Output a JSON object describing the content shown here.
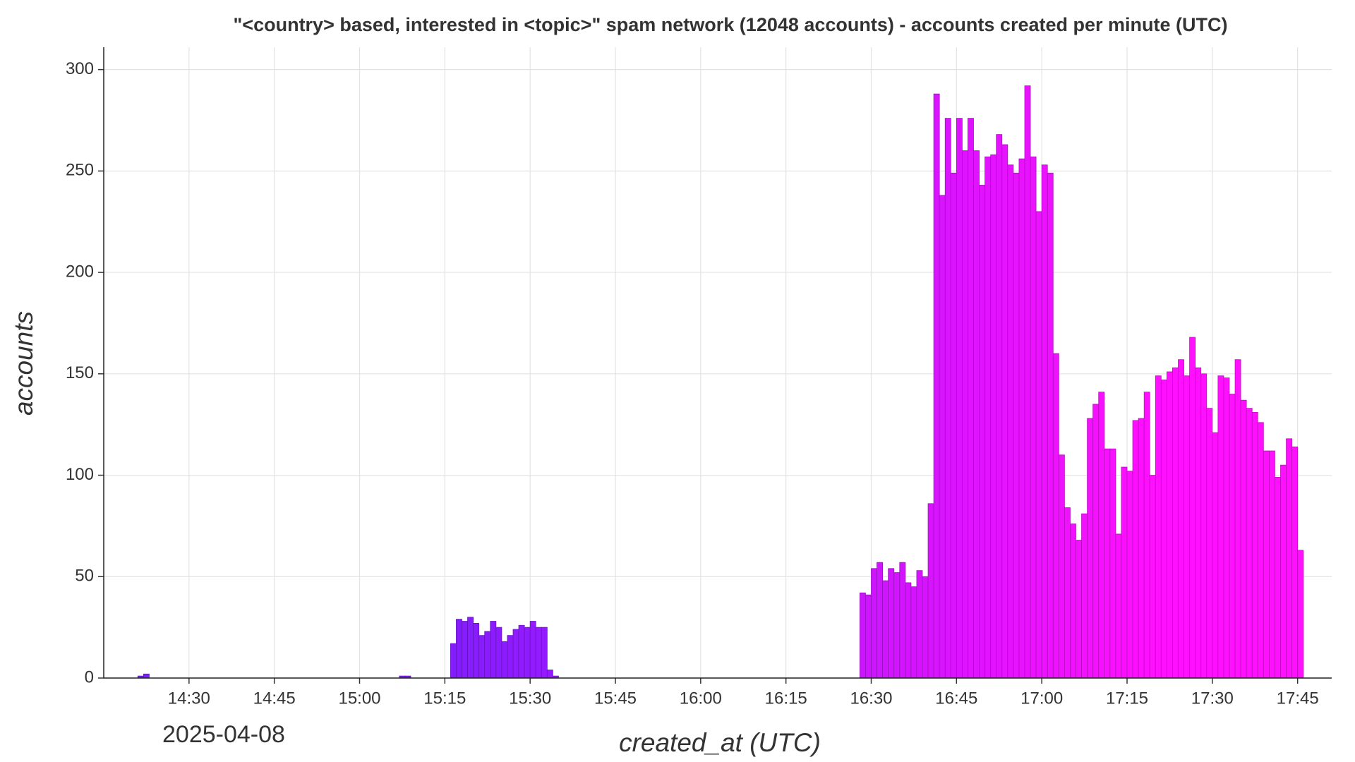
{
  "chart_data": {
    "type": "bar",
    "title": "\"<country> based, interested in <topic>\" spam network (12048 accounts) - accounts created per minute (UTC)",
    "x_label": "created_at (UTC)",
    "y_label": "accounts",
    "x_date_label": "2025-04-08",
    "color_scale": [
      "#7d1dff",
      "#ff10ff"
    ],
    "grid": true,
    "x": [
      "2025-04-08 14:21",
      "2025-04-08 14:22",
      "2025-04-08 15:07",
      "2025-04-08 15:08",
      "2025-04-08 15:16",
      "2025-04-08 15:17",
      "2025-04-08 15:18",
      "2025-04-08 15:19",
      "2025-04-08 15:20",
      "2025-04-08 15:21",
      "2025-04-08 15:22",
      "2025-04-08 15:23",
      "2025-04-08 15:24",
      "2025-04-08 15:25",
      "2025-04-08 15:26",
      "2025-04-08 15:27",
      "2025-04-08 15:28",
      "2025-04-08 15:29",
      "2025-04-08 15:30",
      "2025-04-08 15:31",
      "2025-04-08 15:32",
      "2025-04-08 15:33",
      "2025-04-08 15:34",
      "2025-04-08 16:28",
      "2025-04-08 16:29",
      "2025-04-08 16:30",
      "2025-04-08 16:31",
      "2025-04-08 16:32",
      "2025-04-08 16:33",
      "2025-04-08 16:34",
      "2025-04-08 16:35",
      "2025-04-08 16:36",
      "2025-04-08 16:37",
      "2025-04-08 16:38",
      "2025-04-08 16:39",
      "2025-04-08 16:40",
      "2025-04-08 16:41",
      "2025-04-08 16:42",
      "2025-04-08 16:43",
      "2025-04-08 16:44",
      "2025-04-08 16:45",
      "2025-04-08 16:46",
      "2025-04-08 16:47",
      "2025-04-08 16:48",
      "2025-04-08 16:49",
      "2025-04-08 16:50",
      "2025-04-08 16:51",
      "2025-04-08 16:52",
      "2025-04-08 16:53",
      "2025-04-08 16:54",
      "2025-04-08 16:55",
      "2025-04-08 16:56",
      "2025-04-08 16:57",
      "2025-04-08 16:58",
      "2025-04-08 16:59",
      "2025-04-08 17:00",
      "2025-04-08 17:01",
      "2025-04-08 17:02",
      "2025-04-08 17:03",
      "2025-04-08 17:04",
      "2025-04-08 17:05",
      "2025-04-08 17:06",
      "2025-04-08 17:07",
      "2025-04-08 17:08",
      "2025-04-08 17:09",
      "2025-04-08 17:10",
      "2025-04-08 17:11",
      "2025-04-08 17:12",
      "2025-04-08 17:13",
      "2025-04-08 17:14",
      "2025-04-08 17:15",
      "2025-04-08 17:16",
      "2025-04-08 17:17",
      "2025-04-08 17:18",
      "2025-04-08 17:19",
      "2025-04-08 17:20",
      "2025-04-08 17:21",
      "2025-04-08 17:22",
      "2025-04-08 17:23",
      "2025-04-08 17:24",
      "2025-04-08 17:25",
      "2025-04-08 17:26",
      "2025-04-08 17:27",
      "2025-04-08 17:28",
      "2025-04-08 17:29",
      "2025-04-08 17:30",
      "2025-04-08 17:31",
      "2025-04-08 17:32",
      "2025-04-08 17:33",
      "2025-04-08 17:34",
      "2025-04-08 17:35",
      "2025-04-08 17:36",
      "2025-04-08 17:37",
      "2025-04-08 17:38",
      "2025-04-08 17:39",
      "2025-04-08 17:40",
      "2025-04-08 17:41",
      "2025-04-08 17:42",
      "2025-04-08 17:43",
      "2025-04-08 17:44",
      "2025-04-08 17:45"
    ],
    "values": [
      1,
      2,
      1,
      1,
      17,
      29,
      28,
      30,
      27,
      21,
      23,
      28,
      25,
      18,
      21,
      24,
      26,
      25,
      28,
      25,
      25,
      4,
      1,
      42,
      41,
      54,
      57,
      48,
      54,
      52,
      57,
      47,
      45,
      53,
      50,
      86,
      288,
      238,
      276,
      249,
      276,
      260,
      276,
      260,
      243,
      257,
      258,
      268,
      263,
      253,
      249,
      256,
      292,
      257,
      230,
      253,
      249,
      160,
      110,
      84,
      76,
      68,
      81,
      128,
      135,
      141,
      113,
      113,
      71,
      104,
      102,
      127,
      128,
      141,
      100,
      149,
      147,
      151,
      153,
      157,
      149,
      168,
      153,
      150,
      133,
      121,
      149,
      148,
      140,
      157,
      137,
      133,
      131,
      126,
      112,
      112,
      99,
      105,
      118,
      114,
      63
    ],
    "xlim": [
      "2025-04-08 14:15",
      "2025-04-08 17:51"
    ],
    "xticks": [
      {
        "value": "2025-04-08 14:30",
        "label": "14:30"
      },
      {
        "value": "2025-04-08 14:45",
        "label": "14:45"
      },
      {
        "value": "2025-04-08 15:00",
        "label": "15:00"
      },
      {
        "value": "2025-04-08 15:15",
        "label": "15:15"
      },
      {
        "value": "2025-04-08 15:30",
        "label": "15:30"
      },
      {
        "value": "2025-04-08 15:45",
        "label": "15:45"
      },
      {
        "value": "2025-04-08 16:00",
        "label": "16:00"
      },
      {
        "value": "2025-04-08 16:15",
        "label": "16:15"
      },
      {
        "value": "2025-04-08 16:30",
        "label": "16:30"
      },
      {
        "value": "2025-04-08 16:45",
        "label": "16:45"
      },
      {
        "value": "2025-04-08 17:00",
        "label": "17:00"
      },
      {
        "value": "2025-04-08 17:15",
        "label": "17:15"
      },
      {
        "value": "2025-04-08 17:30",
        "label": "17:30"
      },
      {
        "value": "2025-04-08 17:45",
        "label": "17:45"
      }
    ],
    "ylim": [
      0,
      311
    ],
    "yticks": [
      0,
      50,
      100,
      150,
      200,
      250,
      300
    ]
  }
}
